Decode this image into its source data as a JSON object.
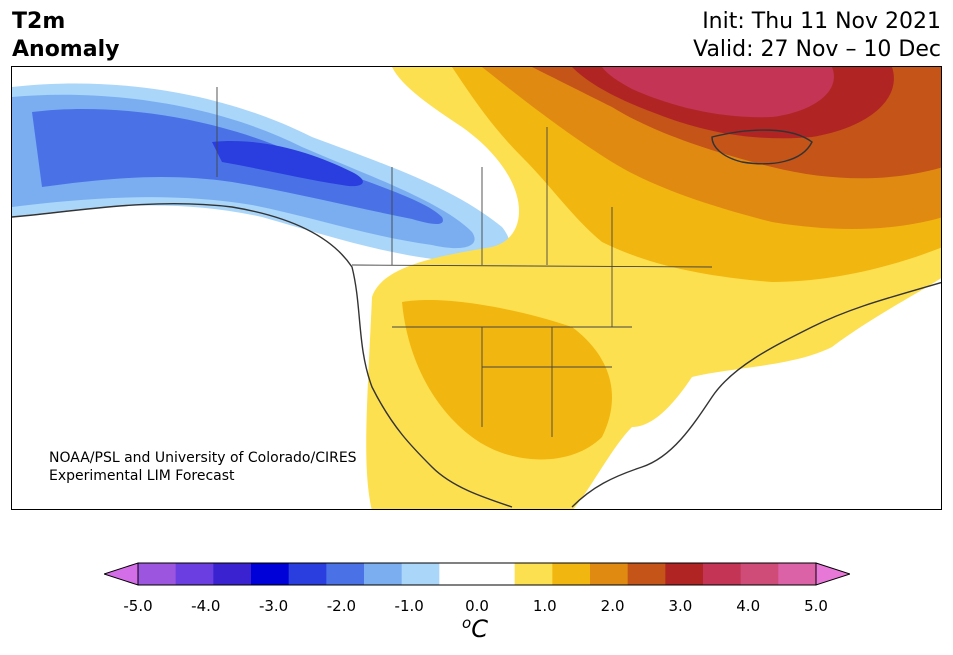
{
  "title": {
    "line1": "T2m",
    "line2": "Anomaly"
  },
  "dates": {
    "init": "Init: Thu 11 Nov 2021",
    "valid": "Valid: 27 Nov – 10 Dec"
  },
  "credit": {
    "line1": "NOAA/PSL and University of Colorado/CIRES",
    "line2": "Experimental LIM Forecast"
  },
  "colorbar": {
    "ticks": [
      "-5.0",
      "-4.0",
      "-3.0",
      "-2.0",
      "-1.0",
      "0.0",
      "1.0",
      "2.0",
      "3.0",
      "4.0",
      "5.0"
    ],
    "unit_symbol": "o",
    "unit_letter": "C",
    "colors": [
      "#d46ee8",
      "#9b55de",
      "#6a3ee0",
      "#3b22d0",
      "#0000d8",
      "#2a3ee0",
      "#4a72e6",
      "#7aaef0",
      "#aad6fa",
      "#ffffff",
      "#ffffff",
      "#fde050",
      "#f2b610",
      "#e08a12",
      "#c45418",
      "#b02424",
      "#c43454",
      "#d04c78",
      "#dc62a8",
      "#e878d8"
    ]
  }
}
